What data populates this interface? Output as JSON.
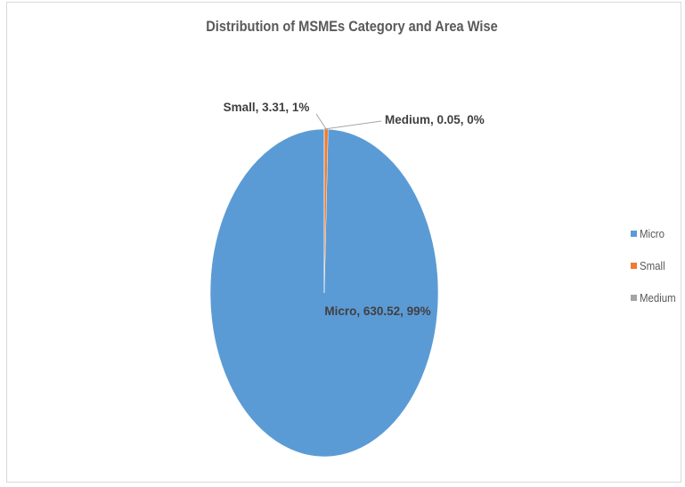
{
  "chart_data": {
    "type": "pie",
    "title": "Distribution of MSMEs Category and Area Wise",
    "slices": [
      {
        "name": "Micro",
        "value": 630.52,
        "percent_label": "99%",
        "label": "Micro, 630.52, 99%",
        "color": "#5b9bd5"
      },
      {
        "name": "Small",
        "value": 3.31,
        "percent_label": "1%",
        "label": "Small, 3.31, 1%",
        "color": "#ed7d31"
      },
      {
        "name": "Medium",
        "value": 0.05,
        "percent_label": "0%",
        "label": "Medium, 0.05, 0%",
        "color": "#a5a5a5"
      }
    ],
    "legend": {
      "position": "right",
      "items": [
        "Micro",
        "Small",
        "Medium"
      ]
    }
  }
}
